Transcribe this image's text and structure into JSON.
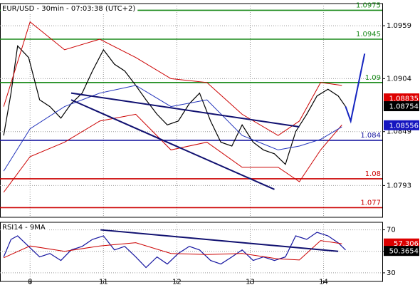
{
  "chart_data": [
    {
      "type": "line",
      "title": "EUR/USD - 30min - 07:03:38 (UTC+2)",
      "xlim": [
        -0.41,
        4.8
      ],
      "ylim": [
        1.076,
        1.0982
      ],
      "yticks": [
        1.0959,
        1.0904,
        1.0849,
        1.0793
      ],
      "grid": true,
      "series": [
        {
          "color": "#000000",
          "x": [
            -0.36,
            -0.26,
            -0.17,
            -0.02,
            0.13,
            0.27,
            0.42,
            0.56,
            0.71,
            0.85,
            1.0,
            1.15,
            1.29,
            1.44,
            1.58,
            1.73,
            1.87,
            2.02,
            2.17,
            2.31,
            2.46,
            2.6,
            2.75,
            2.89,
            3.04,
            3.18,
            3.33,
            3.48,
            3.62,
            3.77,
            3.91,
            4.06,
            4.2,
            4.3
          ],
          "values": [
            1.0845,
            1.0889,
            1.0938,
            1.0926,
            1.0882,
            1.0875,
            1.0863,
            1.0878,
            1.0889,
            1.0912,
            1.0934,
            1.0919,
            1.0912,
            1.0897,
            1.0882,
            1.0867,
            1.0856,
            1.086,
            1.0878,
            1.0889,
            1.086,
            1.0838,
            1.0834,
            1.0856,
            1.0838,
            1.083,
            1.0826,
            1.0815,
            1.0849,
            1.0867,
            1.0886,
            1.0893,
            1.0886,
            1.0875
          ]
        },
        {
          "color": "#cc0000",
          "x": [
            -0.36,
            0,
            0.47,
            0.95,
            1.44,
            1.92,
            2.41,
            2.89,
            3.38,
            3.67,
            3.96,
            4.25
          ],
          "values": [
            1.0875,
            1.0963,
            1.0934,
            1.0945,
            1.0926,
            1.0904,
            1.09,
            1.0867,
            1.0845,
            1.086,
            1.09,
            1.0897
          ]
        },
        {
          "color": "#cc0000",
          "x": [
            -0.36,
            0,
            0.47,
            0.95,
            1.44,
            1.92,
            2.41,
            2.89,
            3.38,
            3.67,
            3.96,
            4.25
          ],
          "values": [
            1.0786,
            1.0823,
            1.0838,
            1.086,
            1.0867,
            1.083,
            1.0838,
            1.0812,
            1.0812,
            1.0797,
            1.083,
            1.0856
          ]
        },
        {
          "color": "#2233bb",
          "x": [
            -0.36,
            0,
            0.47,
            0.95,
            1.44,
            1.92,
            2.41,
            2.89,
            3.38,
            3.67,
            3.96,
            4.25
          ],
          "values": [
            1.0808,
            1.0852,
            1.0875,
            1.0889,
            1.0897,
            1.0875,
            1.0882,
            1.0845,
            1.083,
            1.0834,
            1.0841,
            1.0854
          ]
        }
      ],
      "levels": [
        {
          "value": 1.0975,
          "color": "#1a8a1a"
        },
        {
          "value": 1.0945,
          "color": "#1a8a1a"
        },
        {
          "value": 1.09,
          "color": "#1a8a1a"
        },
        {
          "value": 1.084,
          "color": "#1515a0"
        },
        {
          "value": 1.08,
          "color": "#cc0000"
        },
        {
          "value": 1.077,
          "color": "#cc0000"
        }
      ],
      "trend_lines": [
        {
          "color": "#101070",
          "x": [
            0.56,
            3.67
          ],
          "values": [
            1.0889,
            1.0854
          ]
        },
        {
          "color": "#101070",
          "x": [
            0.56,
            3.33
          ],
          "values": [
            1.0882,
            1.0789
          ]
        },
        {
          "color": "#1525c0",
          "x": [
            4.3,
            4.37,
            4.56
          ],
          "values": [
            1.0875,
            1.086,
            1.093
          ]
        }
      ],
      "markers": [
        {
          "value": 1.08835,
          "color": "#dd0000"
        },
        {
          "value": 1.08754,
          "color": "#000000"
        },
        {
          "value": 1.08556,
          "color": "#1515c0"
        }
      ]
    },
    {
      "type": "line",
      "title": "RSI14 - 9MA",
      "xlim": [
        -0.41,
        4.8
      ],
      "ylim": [
        22,
        77
      ],
      "yticks": [
        70,
        50,
        30
      ],
      "grid": true,
      "xticks": [
        {
          "value": 0,
          "label": "8"
        },
        {
          "value": 1,
          "label": "11"
        },
        {
          "value": 2,
          "label": "12"
        },
        {
          "value": 3,
          "label": "13"
        },
        {
          "value": 4,
          "label": "14"
        }
      ],
      "series": [
        {
          "color": "#1515a0",
          "x": [
            -0.36,
            -0.26,
            -0.17,
            -0.02,
            0.13,
            0.27,
            0.42,
            0.56,
            0.71,
            0.85,
            1.0,
            1.15,
            1.29,
            1.44,
            1.58,
            1.73,
            1.87,
            2.02,
            2.17,
            2.31,
            2.46,
            2.6,
            2.75,
            2.89,
            3.04,
            3.18,
            3.33,
            3.48,
            3.62,
            3.77,
            3.91,
            4.06,
            4.2,
            4.3
          ],
          "values": [
            44.8,
            61.1,
            64.4,
            54.6,
            44.8,
            48.0,
            41.5,
            51.3,
            54.6,
            61.1,
            64.4,
            51.3,
            54.6,
            44.8,
            34.9,
            44.8,
            38.2,
            48.0,
            54.6,
            51.3,
            41.5,
            38.2,
            44.8,
            51.3,
            41.5,
            44.8,
            41.5,
            44.8,
            64.4,
            61.1,
            67.7,
            64.4,
            57.9,
            51.3
          ]
        },
        {
          "color": "#cc0000",
          "x": [
            -0.36,
            0,
            0.47,
            0.95,
            1.44,
            1.92,
            2.41,
            2.89,
            3.38,
            3.67,
            3.96,
            4.25
          ],
          "values": [
            44,
            55,
            50,
            55,
            58,
            48,
            47,
            48,
            43,
            42,
            60,
            57
          ]
        }
      ],
      "trend_lines": [
        {
          "color": "#101070",
          "x": [
            0.96,
            4.2
          ],
          "values": [
            70,
            50
          ]
        }
      ],
      "markers": [
        {
          "value": 57.306,
          "color": "#dd0000"
        },
        {
          "value": 50.3654,
          "color": "#000000"
        }
      ]
    }
  ]
}
